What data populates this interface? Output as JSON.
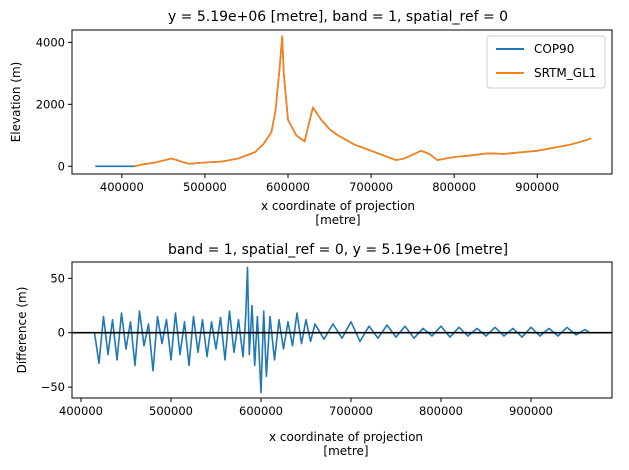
{
  "chart_data": [
    {
      "type": "line",
      "title": "y = 5.19e+06 [metre], band = 1, spatial_ref = 0",
      "xlabel": "x coordinate of projection",
      "xlabel_unit": "[metre]",
      "ylabel": "Elevation (m)",
      "xlim": [
        340000,
        990000
      ],
      "ylim": [
        -250,
        4400
      ],
      "xticks": [
        400000,
        500000,
        600000,
        700000,
        800000,
        900000
      ],
      "yticks": [
        0,
        2000,
        4000
      ],
      "legend": "top-right",
      "series": [
        {
          "name": "COP90",
          "color": "#1f77b4",
          "x": [
            368000,
            415000,
            425000,
            440000,
            460000,
            480000,
            500000,
            520000,
            540000,
            560000,
            570000,
            580000,
            585000,
            590000,
            593000,
            595000,
            600000,
            610000,
            620000,
            630000,
            640000,
            650000,
            660000,
            680000,
            700000,
            720000,
            730000,
            740000,
            760000,
            770000,
            780000,
            800000,
            820000,
            840000,
            860000,
            880000,
            900000,
            920000,
            940000,
            960000,
            965000
          ],
          "values": [
            0,
            0,
            60,
            120,
            250,
            80,
            120,
            150,
            250,
            450,
            700,
            1100,
            1800,
            3200,
            4200,
            3000,
            1500,
            1000,
            800,
            1900,
            1500,
            1200,
            1000,
            700,
            500,
            300,
            200,
            250,
            500,
            400,
            200,
            300,
            350,
            420,
            400,
            450,
            500,
            600,
            700,
            850,
            900
          ]
        },
        {
          "name": "SRTM_GL1",
          "color": "#ff7f0e",
          "x": [
            415000,
            425000,
            440000,
            460000,
            480000,
            500000,
            520000,
            540000,
            560000,
            570000,
            580000,
            585000,
            590000,
            593000,
            595000,
            600000,
            610000,
            620000,
            630000,
            640000,
            650000,
            660000,
            680000,
            700000,
            720000,
            730000,
            740000,
            760000,
            770000,
            780000,
            800000,
            820000,
            840000,
            860000,
            880000,
            900000,
            920000,
            940000,
            960000,
            965000
          ],
          "values": [
            0,
            60,
            120,
            250,
            80,
            120,
            150,
            250,
            450,
            700,
            1100,
            1800,
            3200,
            4200,
            3000,
            1500,
            1000,
            800,
            1900,
            1500,
            1200,
            1000,
            700,
            500,
            300,
            200,
            250,
            500,
            400,
            200,
            300,
            350,
            420,
            400,
            450,
            500,
            600,
            700,
            850,
            900
          ]
        }
      ]
    },
    {
      "type": "line",
      "title": "band = 1, spatial_ref = 0, y = 5.19e+06 [metre]",
      "xlabel": "x coordinate of projection",
      "xlabel_unit": "[metre]",
      "ylabel": "Difference (m)",
      "xlim": [
        390000,
        990000
      ],
      "ylim": [
        -60,
        65
      ],
      "xticks": [
        400000,
        500000,
        600000,
        700000,
        800000,
        900000
      ],
      "yticks": [
        -50,
        0,
        50
      ],
      "reference_line_y": 0,
      "series": [
        {
          "name": "",
          "color": "#1f77b4",
          "x": [
            415000,
            420000,
            425000,
            430000,
            435000,
            440000,
            445000,
            450000,
            455000,
            460000,
            465000,
            470000,
            475000,
            480000,
            485000,
            490000,
            495000,
            500000,
            505000,
            510000,
            515000,
            520000,
            525000,
            530000,
            535000,
            540000,
            545000,
            550000,
            555000,
            560000,
            565000,
            570000,
            575000,
            580000,
            583000,
            585000,
            587000,
            590000,
            593000,
            596000,
            600000,
            603000,
            606000,
            610000,
            615000,
            620000,
            625000,
            630000,
            635000,
            640000,
            645000,
            650000,
            655000,
            660000,
            670000,
            680000,
            690000,
            700000,
            710000,
            720000,
            730000,
            740000,
            750000,
            760000,
            770000,
            780000,
            790000,
            800000,
            810000,
            820000,
            830000,
            840000,
            850000,
            860000,
            870000,
            880000,
            890000,
            900000,
            910000,
            920000,
            930000,
            940000,
            950000,
            960000,
            965000
          ],
          "values": [
            0,
            -28,
            15,
            -20,
            12,
            -25,
            18,
            -15,
            10,
            -30,
            20,
            -12,
            8,
            -35,
            15,
            -10,
            12,
            -25,
            18,
            -20,
            10,
            -30,
            15,
            -18,
            12,
            -22,
            10,
            -15,
            14,
            -25,
            20,
            -18,
            12,
            -22,
            15,
            60,
            -20,
            25,
            -30,
            15,
            -55,
            20,
            -40,
            15,
            -25,
            12,
            -15,
            10,
            -12,
            18,
            -10,
            12,
            -8,
            8,
            -6,
            8,
            -5,
            10,
            -8,
            6,
            -5,
            7,
            -4,
            6,
            -5,
            4,
            -3,
            6,
            -4,
            5,
            -3,
            4,
            -3,
            5,
            -3,
            4,
            -4,
            5,
            -3,
            4,
            -3,
            5,
            -2,
            3,
            0
          ]
        }
      ]
    }
  ]
}
